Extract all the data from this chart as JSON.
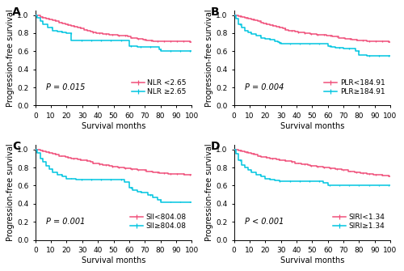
{
  "panels": [
    {
      "label": "A",
      "p_value": "P = 0.015",
      "legend_labels": [
        "NLR <2.65",
        "NLR ≥2.65"
      ],
      "high_curve": {
        "x": [
          0,
          1,
          3,
          5,
          7,
          9,
          11,
          13,
          15,
          17,
          19,
          21,
          23,
          25,
          27,
          29,
          31,
          33,
          35,
          37,
          39,
          41,
          43,
          45,
          47,
          49,
          51,
          53,
          55,
          57,
          59,
          61,
          63,
          65,
          67,
          69,
          71,
          73,
          75,
          77,
          79,
          81,
          83,
          85,
          87,
          89,
          91,
          93,
          95,
          97,
          99,
          100
        ],
        "y": [
          1.0,
          1.0,
          0.98,
          0.97,
          0.96,
          0.95,
          0.94,
          0.93,
          0.92,
          0.91,
          0.9,
          0.89,
          0.88,
          0.87,
          0.86,
          0.85,
          0.84,
          0.83,
          0.82,
          0.81,
          0.8,
          0.8,
          0.79,
          0.79,
          0.78,
          0.78,
          0.78,
          0.77,
          0.77,
          0.77,
          0.76,
          0.75,
          0.75,
          0.74,
          0.74,
          0.73,
          0.72,
          0.72,
          0.71,
          0.71,
          0.71,
          0.71,
          0.71,
          0.71,
          0.71,
          0.71,
          0.71,
          0.71,
          0.71,
          0.71,
          0.7,
          0.7
        ]
      },
      "low_curve": {
        "x": [
          0,
          1,
          3,
          5,
          8,
          11,
          14,
          17,
          20,
          23,
          25,
          27,
          28,
          29,
          30,
          35,
          40,
          45,
          50,
          55,
          58,
          60,
          62,
          65,
          70,
          75,
          77,
          78,
          79,
          80,
          85,
          90,
          95,
          100
        ],
        "y": [
          1.0,
          0.97,
          0.93,
          0.9,
          0.86,
          0.83,
          0.82,
          0.81,
          0.8,
          0.72,
          0.72,
          0.72,
          0.72,
          0.72,
          0.72,
          0.72,
          0.72,
          0.72,
          0.72,
          0.72,
          0.72,
          0.66,
          0.66,
          0.65,
          0.65,
          0.65,
          0.65,
          0.65,
          0.62,
          0.6,
          0.6,
          0.6,
          0.6,
          0.6
        ]
      }
    },
    {
      "label": "B",
      "p_value": "P = 0.004",
      "legend_labels": [
        "PLR<184.91",
        "PLR≥184.91"
      ],
      "high_curve": {
        "x": [
          0,
          1,
          3,
          5,
          7,
          9,
          11,
          13,
          15,
          17,
          19,
          21,
          23,
          25,
          27,
          29,
          31,
          33,
          35,
          37,
          39,
          41,
          43,
          45,
          47,
          49,
          51,
          53,
          55,
          57,
          59,
          61,
          63,
          65,
          67,
          69,
          71,
          73,
          75,
          77,
          79,
          81,
          83,
          85,
          87,
          89,
          91,
          93,
          95,
          97,
          99,
          100
        ],
        "y": [
          1.0,
          1.0,
          0.99,
          0.98,
          0.97,
          0.96,
          0.95,
          0.94,
          0.93,
          0.92,
          0.91,
          0.9,
          0.89,
          0.88,
          0.87,
          0.86,
          0.85,
          0.84,
          0.83,
          0.83,
          0.82,
          0.81,
          0.81,
          0.8,
          0.8,
          0.79,
          0.79,
          0.78,
          0.78,
          0.78,
          0.77,
          0.77,
          0.76,
          0.76,
          0.75,
          0.75,
          0.74,
          0.74,
          0.73,
          0.73,
          0.72,
          0.72,
          0.72,
          0.71,
          0.71,
          0.71,
          0.71,
          0.71,
          0.71,
          0.71,
          0.7,
          0.7
        ]
      },
      "low_curve": {
        "x": [
          0,
          1,
          3,
          5,
          7,
          9,
          11,
          14,
          17,
          20,
          23,
          26,
          28,
          29,
          30,
          35,
          40,
          45,
          50,
          55,
          57,
          60,
          62,
          65,
          70,
          75,
          77,
          78,
          80,
          85,
          90,
          95,
          100
        ],
        "y": [
          1.0,
          0.96,
          0.9,
          0.86,
          0.83,
          0.81,
          0.79,
          0.77,
          0.75,
          0.74,
          0.73,
          0.71,
          0.7,
          0.69,
          0.68,
          0.68,
          0.68,
          0.68,
          0.68,
          0.68,
          0.68,
          0.66,
          0.65,
          0.64,
          0.63,
          0.63,
          0.63,
          0.6,
          0.56,
          0.55,
          0.55,
          0.55,
          0.55
        ]
      }
    },
    {
      "label": "C",
      "p_value": "P = 0.001",
      "legend_labels": [
        "SII<804.08",
        "SII≥804.08"
      ],
      "high_curve": {
        "x": [
          0,
          1,
          3,
          5,
          7,
          9,
          11,
          13,
          15,
          17,
          19,
          21,
          23,
          25,
          27,
          29,
          31,
          33,
          35,
          37,
          39,
          41,
          43,
          45,
          47,
          49,
          51,
          53,
          55,
          57,
          59,
          61,
          63,
          65,
          67,
          69,
          71,
          73,
          75,
          77,
          79,
          81,
          83,
          85,
          87,
          89,
          91,
          93,
          95,
          97,
          99,
          100
        ],
        "y": [
          1.0,
          1.0,
          0.99,
          0.98,
          0.97,
          0.96,
          0.95,
          0.94,
          0.93,
          0.93,
          0.92,
          0.91,
          0.9,
          0.9,
          0.89,
          0.88,
          0.88,
          0.87,
          0.86,
          0.85,
          0.85,
          0.84,
          0.83,
          0.83,
          0.82,
          0.81,
          0.81,
          0.8,
          0.8,
          0.79,
          0.79,
          0.78,
          0.78,
          0.77,
          0.77,
          0.77,
          0.76,
          0.76,
          0.75,
          0.75,
          0.74,
          0.74,
          0.74,
          0.73,
          0.73,
          0.73,
          0.73,
          0.73,
          0.72,
          0.72,
          0.72,
          0.72
        ]
      },
      "low_curve": {
        "x": [
          0,
          1,
          3,
          5,
          7,
          9,
          11,
          14,
          17,
          20,
          23,
          26,
          28,
          29,
          30,
          35,
          40,
          45,
          50,
          55,
          57,
          60,
          62,
          65,
          68,
          70,
          72,
          75,
          78,
          80,
          85,
          90,
          95,
          100
        ],
        "y": [
          1.0,
          0.96,
          0.9,
          0.86,
          0.82,
          0.78,
          0.75,
          0.72,
          0.7,
          0.68,
          0.68,
          0.67,
          0.67,
          0.67,
          0.67,
          0.67,
          0.67,
          0.67,
          0.67,
          0.67,
          0.64,
          0.58,
          0.55,
          0.53,
          0.52,
          0.52,
          0.5,
          0.47,
          0.44,
          0.42,
          0.42,
          0.42,
          0.42,
          0.42
        ]
      }
    },
    {
      "label": "D",
      "p_value": "P < 0.001",
      "legend_labels": [
        "SIRI<1.34",
        "SIRI≥1.34"
      ],
      "high_curve": {
        "x": [
          0,
          1,
          3,
          5,
          7,
          9,
          11,
          13,
          15,
          17,
          19,
          21,
          23,
          25,
          27,
          29,
          31,
          33,
          35,
          37,
          39,
          41,
          43,
          45,
          47,
          49,
          51,
          53,
          55,
          57,
          59,
          61,
          63,
          65,
          67,
          69,
          71,
          73,
          75,
          77,
          79,
          81,
          83,
          85,
          87,
          89,
          91,
          93,
          95,
          97,
          99,
          100
        ],
        "y": [
          1.0,
          1.0,
          0.99,
          0.98,
          0.97,
          0.96,
          0.95,
          0.94,
          0.93,
          0.92,
          0.92,
          0.91,
          0.9,
          0.9,
          0.89,
          0.88,
          0.88,
          0.87,
          0.87,
          0.86,
          0.85,
          0.85,
          0.84,
          0.84,
          0.83,
          0.82,
          0.82,
          0.81,
          0.81,
          0.8,
          0.8,
          0.79,
          0.79,
          0.78,
          0.78,
          0.77,
          0.77,
          0.76,
          0.76,
          0.75,
          0.75,
          0.74,
          0.74,
          0.73,
          0.73,
          0.72,
          0.72,
          0.72,
          0.71,
          0.71,
          0.7,
          0.7
        ]
      },
      "low_curve": {
        "x": [
          0,
          1,
          3,
          5,
          7,
          9,
          11,
          14,
          17,
          20,
          23,
          26,
          28,
          29,
          30,
          35,
          40,
          45,
          50,
          55,
          57,
          60,
          62,
          65,
          70,
          75,
          78,
          80,
          85,
          90,
          95,
          100
        ],
        "y": [
          1.0,
          0.95,
          0.88,
          0.83,
          0.8,
          0.77,
          0.75,
          0.72,
          0.7,
          0.68,
          0.67,
          0.66,
          0.66,
          0.65,
          0.65,
          0.65,
          0.65,
          0.65,
          0.65,
          0.65,
          0.63,
          0.6,
          0.6,
          0.6,
          0.6,
          0.6,
          0.6,
          0.6,
          0.6,
          0.6,
          0.6,
          0.6
        ]
      }
    }
  ],
  "color_high": "#F0507A",
  "color_low": "#00C5E0",
  "xlabel": "Survival months",
  "ylabel": "Progression-free survival",
  "xlim": [
    0,
    100
  ],
  "ylim": [
    0.0,
    1.05
  ],
  "xticks": [
    0,
    10,
    20,
    30,
    40,
    50,
    60,
    70,
    80,
    90,
    100
  ],
  "yticks": [
    0.0,
    0.2,
    0.4,
    0.6,
    0.8,
    1.0
  ],
  "tick_fontsize": 6.5,
  "label_fontsize": 7.0,
  "legend_fontsize": 6.5,
  "panel_label_fontsize": 10,
  "p_fontsize": 7.0
}
